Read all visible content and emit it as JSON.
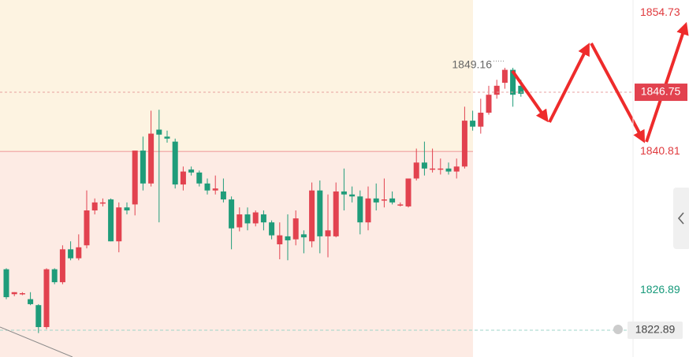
{
  "chart_data": {
    "type": "candlestick",
    "ylim": [
      1820.2,
      1856
    ],
    "up_color": "#e2424f",
    "down_color": "#1f9c7a",
    "open": [
      1829.0,
      1826.5,
      1826.6,
      1826.0,
      1825.4,
      1823.2,
      1829.0,
      1827.7,
      1831.0,
      1830.1,
      1831.4,
      1834.9,
      1835.7,
      1836.0,
      1831.8,
      1835.2,
      1835.5,
      1840.9,
      1837.6,
      1843.0,
      1842.3,
      1841.8,
      1837.5,
      1839.0,
      1838.7,
      1837.6,
      1836.9,
      1836.8,
      1836.0,
      1833.2,
      1834.5,
      1833.6,
      1834.5,
      1833.7,
      1831.5,
      1832.3,
      1832.0,
      1832.5,
      1831.8,
      1836.9,
      1832.3,
      1832.3,
      1836.8,
      1836.5,
      1836.3,
      1833.7,
      1836.1,
      1835.9,
      1836.1,
      1835.5,
      1835.3,
      1838.1,
      1839.7,
      1839.1,
      1839.1,
      1839.1,
      1838.8,
      1839.3,
      1843.9,
      1843.3,
      1844.7,
      1846.5,
      1847.7,
      1849.0,
      1847.4
    ],
    "high": [
      1829.1,
      1826.7,
      1826.7,
      1826.7,
      1825.5,
      1829.1,
      1829.1,
      1831.4,
      1831.8,
      1832.5,
      1836.9,
      1836.1,
      1836.1,
      1836.1,
      1835.7,
      1835.7,
      1840.9,
      1842.3,
      1844.9,
      1845.0,
      1842.9,
      1842.1,
      1839.3,
      1839.3,
      1838.9,
      1838.1,
      1838.4,
      1838.1,
      1836.3,
      1835.2,
      1835.2,
      1834.9,
      1834.9,
      1833.9,
      1833.7,
      1834.5,
      1834.9,
      1832.9,
      1837.7,
      1837.9,
      1836.5,
      1837.7,
      1839.1,
      1837.3,
      1836.9,
      1837.3,
      1837.6,
      1838.1,
      1836.8,
      1835.7,
      1838.1,
      1841.1,
      1841.8,
      1841.1,
      1840.1,
      1839.7,
      1840.1,
      1845.3,
      1844.9,
      1846.1,
      1847.4,
      1848.0,
      1849.2,
      1849.2,
      1848.0
    ],
    "low": [
      1826.0,
      1826.3,
      1826.4,
      1825.4,
      1822.6,
      1823.0,
      1827.5,
      1827.5,
      1829.9,
      1829.9,
      1831.1,
      1834.5,
      1835.3,
      1831.8,
      1830.7,
      1834.5,
      1834.4,
      1836.9,
      1837.3,
      1833.7,
      1841.7,
      1837.1,
      1836.9,
      1838.4,
      1837.3,
      1836.5,
      1836.5,
      1835.7,
      1831.0,
      1832.8,
      1832.9,
      1833.3,
      1832.9,
      1832.0,
      1830.0,
      1829.9,
      1831.4,
      1830.6,
      1831.2,
      1830.6,
      1830.2,
      1832.2,
      1834.9,
      1835.7,
      1832.5,
      1832.9,
      1834.9,
      1835.2,
      1835.5,
      1835.3,
      1835.2,
      1837.9,
      1838.4,
      1838.7,
      1838.5,
      1838.5,
      1838.1,
      1839.1,
      1842.9,
      1842.6,
      1844.5,
      1846.1,
      1847.1,
      1845.3,
      1846.3
    ],
    "close": [
      1826.2,
      1826.7,
      1826.6,
      1825.5,
      1823.2,
      1829.0,
      1827.7,
      1831.0,
      1830.1,
      1831.2,
      1834.9,
      1835.7,
      1835.7,
      1831.8,
      1835.2,
      1834.9,
      1840.9,
      1837.6,
      1842.6,
      1842.5,
      1842.1,
      1837.5,
      1838.8,
      1838.7,
      1837.6,
      1836.9,
      1837.1,
      1836.0,
      1833.1,
      1834.5,
      1833.6,
      1834.7,
      1833.7,
      1832.4,
      1832.4,
      1831.9,
      1834.1,
      1832.2,
      1836.9,
      1832.3,
      1832.9,
      1836.8,
      1836.5,
      1836.3,
      1833.7,
      1836.1,
      1835.7,
      1836.0,
      1835.7,
      1835.5,
      1838.1,
      1839.7,
      1839.1,
      1839.1,
      1839.1,
      1838.8,
      1839.3,
      1843.9,
      1843.3,
      1844.7,
      1846.5,
      1847.4,
      1849.0,
      1846.5,
      1846.6
    ],
    "levels": [
      {
        "value": 1854.73,
        "color": "#e03a3e"
      },
      {
        "value": 1840.81,
        "color": "#e03a3e"
      },
      {
        "value": 1826.89,
        "color": "#16997a"
      }
    ],
    "current_price": 1846.75,
    "alert_price": 1822.89,
    "high_label": 1849.16
  }
}
